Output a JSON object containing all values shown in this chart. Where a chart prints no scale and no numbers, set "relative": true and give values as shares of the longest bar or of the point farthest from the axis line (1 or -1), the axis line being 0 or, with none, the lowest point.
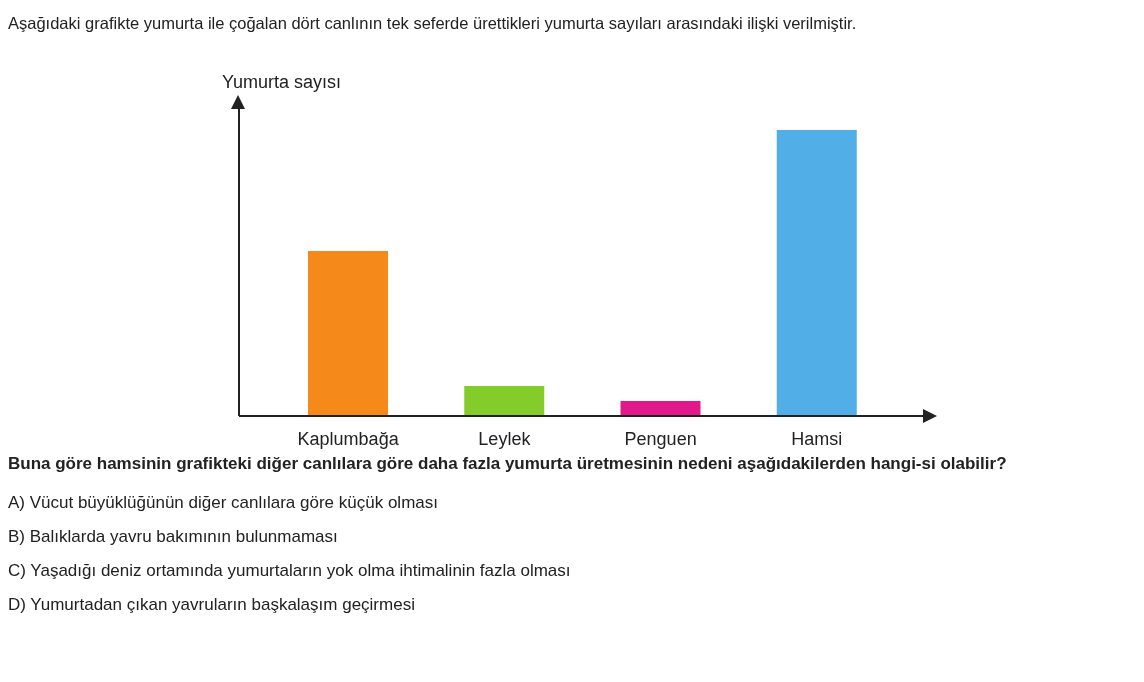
{
  "chart_data": {
    "type": "bar",
    "title": "Aşağıdaki grafikte yumurta ile çoğalan dört canlının tek seferde ürettikleri yumurta sayıları arasındaki ilişki verilmiştir.",
    "ylabel": "Yumurta sayısı",
    "categories": [
      "Kaplumbağa",
      "Leylek",
      "Penguen",
      "Hamsi"
    ],
    "values": [
      0.577,
      0.105,
      0.052,
      1
    ],
    "colors": [
      "#f5891a",
      "#84cc2a",
      "#e2198a",
      "#52aee6"
    ],
    "relative": true,
    "grid": false,
    "legend": false,
    "annotations": [
      "Buna göre hamsinin grafikteki diğer canlılara göre daha fazla yumurta üretmesinin nedeni aşağıdakilerden hangi-si olabilir?",
      "A)  Vücut büyüklüğünün diğer canlılara göre küçük olması",
      "B)  Balıklarda yavru bakımının bulunmaması",
      "C)  Yaşadığı deniz ortamında yumurtaların yok olma ihtimalinin fazla olması",
      "D)  Yumurtadan çıkan yavruların başkalaşım geçirmesi"
    ]
  }
}
